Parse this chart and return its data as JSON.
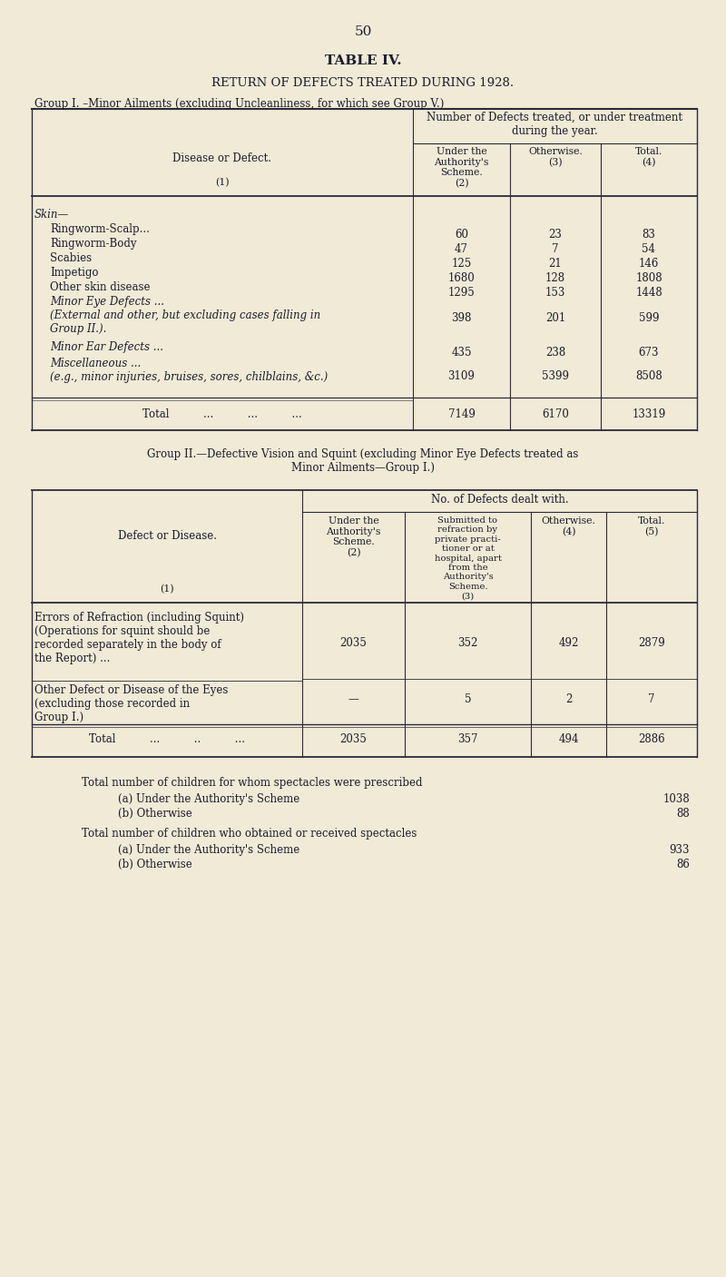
{
  "bg_color": "#f0ead6",
  "text_color": "#1c1c2e",
  "page_number": "50",
  "main_title": "TABLE IV.",
  "subtitle": "RETURN OF DEFECTS TREATED DURING 1928.",
  "group1_heading": "Group I. –Minor Ailments (excluding Uncleanliness, for which see Group V.)",
  "group1_col_header_span": "Number of Defects treated, or under treatment\nduring the year.",
  "group1_rows": [
    [
      "Skin—",
      "",
      "",
      ""
    ],
    [
      "Ringworm-Scalp...",
      "60",
      "23",
      "83"
    ],
    [
      "Ringworm-Body",
      "47",
      "7",
      "54"
    ],
    [
      "Scabies",
      "125",
      "21",
      "146"
    ],
    [
      "Impetigo",
      "1680",
      "128",
      "1808"
    ],
    [
      "Other skin disease",
      "1295",
      "153",
      "1448"
    ],
    [
      "Minor Eye Defects ...\n(External and other, but excluding cases falling in\nGroup II.).",
      "398",
      "201",
      "599"
    ],
    [
      "Minor Ear Defects ...",
      "435",
      "238",
      "673"
    ],
    [
      "Miscellaneous ...\n(e.g., minor injuries, bruises, sores, chilblains, &c.)",
      "3109",
      "5399",
      "8508"
    ]
  ],
  "group1_total_row": [
    "Total",
    "7149",
    "6170",
    "13319"
  ],
  "group2_heading": "Group II.—Defective Vision and Squint (excluding Minor Eye Defects treated as\nMinor Ailments—Group I.)",
  "group2_col_header_span": "No. of Defects dealt with.",
  "group2_rows": [
    [
      "Errors of Refraction (including Squint)\n(Operations for squint should be\nrecorded separately in the body of\nthe Report) ...",
      "2035",
      "352",
      "492",
      "2879"
    ],
    [
      "Other Defect or Disease of the Eyes\n(excluding those recorded in\nGroup I.)",
      "—",
      "5",
      "2",
      "7"
    ]
  ],
  "group2_total_row": [
    "Total",
    "2035",
    "357",
    "494",
    "2886"
  ],
  "footnote1_head": "Total number of children for whom spectacles were prescribed",
  "footnote1a": "(a) Under the Authority's Scheme",
  "footnote1a_val": "1038",
  "footnote1b": "(b) Otherwise",
  "footnote1b_val": "88",
  "footnote2_head": "Total number of children who obtained or received spectacles",
  "footnote2a": "(a) Under the Authority's Scheme",
  "footnote2a_val": "933",
  "footnote2b": "(b) Otherwise",
  "footnote2b_val": "86"
}
